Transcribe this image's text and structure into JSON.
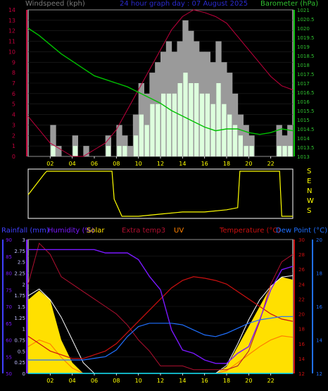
{
  "header": {
    "windspeed_title": "Windspeed (kph)",
    "graph_title": "24 hour graph day : 07 August 2025",
    "barometer_title": "Barometer (hPa)"
  },
  "colors": {
    "wind_gust": "#9a9a9a",
    "wind_avg": "#ddffdd",
    "barometer": "#00c000",
    "temp_top": "#c0003c",
    "wind_dir": "#ffff00",
    "rainfall_axis": "#4040ff",
    "humidity": "#7a18ff",
    "solar": "#ffe000",
    "solar_max": "#ffffff",
    "extra_temp": "#b01030",
    "uv": "#ff8000",
    "temperature": "#cc1010",
    "dew_point": "#2070ff",
    "rain": "#00e0ff"
  },
  "x_ticks": [
    "02",
    "04",
    "06",
    "08",
    "10",
    "12",
    "14",
    "16",
    "18",
    "20",
    "22"
  ],
  "direction_labels": [
    "S",
    "E",
    "N",
    "W",
    "S"
  ],
  "bottom_legend": {
    "rainfall": "Rainfall (mm)",
    "humidity": "Humidity (%)",
    "solar": "Solar",
    "extra_temp": "Extra temp3",
    "uv": "UV",
    "temperature": "Temperature (°C)",
    "dew_point": "Dew Point (°C)"
  },
  "chart_data": [
    {
      "type": "bar",
      "name": "windspeed",
      "xlim": [
        0,
        24
      ],
      "ylim": [
        0,
        14
      ],
      "y_ticks": [
        "0",
        "1",
        "2",
        "3",
        "4",
        "5",
        "6",
        "7",
        "8",
        "9",
        "10",
        "11",
        "12",
        "13",
        "14"
      ],
      "series": [
        {
          "name": "gust",
          "x": [
            0,
            2,
            2.5,
            3,
            3.5,
            4,
            5,
            6,
            7,
            8,
            8.5,
            9,
            9.5,
            10,
            10.5,
            11,
            11.5,
            12,
            12.5,
            13,
            13.5,
            14,
            14.5,
            15,
            15.5,
            16,
            16.5,
            17,
            17.5,
            18,
            18.5,
            19,
            19.5,
            20,
            21,
            22,
            22.5,
            23,
            23.5
          ],
          "values": [
            0,
            3,
            1,
            0,
            0,
            2,
            1,
            0,
            2,
            3,
            2,
            1,
            4,
            7,
            6,
            8,
            9,
            10,
            11,
            10,
            11,
            13,
            12,
            11,
            10,
            10,
            9,
            11,
            9,
            8,
            6,
            4,
            3,
            2,
            0,
            0,
            3,
            2,
            3
          ]
        },
        {
          "name": "average",
          "x": [
            0,
            2,
            2.5,
            3,
            3.5,
            4,
            5,
            6,
            7,
            8,
            8.5,
            9,
            9.5,
            10,
            10.5,
            11,
            11.5,
            12,
            12.5,
            13,
            13.5,
            14,
            14.5,
            15,
            15.5,
            16,
            16.5,
            17,
            17.5,
            18,
            18.5,
            19,
            19.5,
            20,
            21,
            22,
            22.5,
            23,
            23.5
          ],
          "values": [
            0,
            1,
            0,
            0,
            0,
            1,
            0,
            0,
            1,
            1,
            1,
            0,
            2,
            4,
            3,
            5,
            5,
            6,
            6,
            6,
            7,
            8,
            7,
            7,
            6,
            6,
            5,
            7,
            5,
            4,
            3,
            2,
            1,
            1,
            0,
            0,
            1,
            1,
            1
          ]
        }
      ]
    },
    {
      "type": "line",
      "name": "barometer",
      "y_ticks": [
        "1013",
        "1013.5",
        "1014",
        "1014.5",
        "1015",
        "1015.5",
        "1016",
        "1016.5",
        "1017",
        "1017.5",
        "1018",
        "1018.5",
        "1019",
        "1019.5",
        "1020",
        "1020.5",
        "1021"
      ],
      "ylim": [
        1013,
        1021
      ],
      "x": [
        0,
        1,
        2,
        3,
        4,
        5,
        6,
        7,
        8,
        9,
        10,
        11,
        12,
        13,
        14,
        15,
        16,
        17,
        18,
        19,
        20,
        21,
        22,
        23,
        24
      ],
      "values": [
        1020,
        1019.6,
        1019.1,
        1018.6,
        1018.2,
        1017.8,
        1017.4,
        1017.2,
        1017.0,
        1016.8,
        1016.5,
        1016.2,
        1015.9,
        1015.5,
        1015.2,
        1014.9,
        1014.6,
        1014.4,
        1014.5,
        1014.5,
        1014.3,
        1014.2,
        1014.3,
        1014.5,
        1014.4
      ]
    },
    {
      "type": "line",
      "name": "wind_direction",
      "y_labels": [
        "S",
        "E",
        "N",
        "W",
        "S"
      ],
      "x": [
        0,
        1.5,
        1.7,
        7.6,
        7.8,
        8.5,
        10,
        12,
        14,
        16,
        18,
        19,
        19.2,
        22.8,
        23,
        24
      ],
      "values": [
        0.45,
        0.95,
        1.0,
        1.0,
        0.35,
        -0.05,
        -0.05,
        0.0,
        0.05,
        0.05,
        0.1,
        0.15,
        1.0,
        1.0,
        -0.05,
        -0.05
      ],
      "ylim": [
        -0.1,
        1.05
      ]
    },
    {
      "type": "line",
      "name": "climate",
      "humidity_ticks": [
        "50",
        "55",
        "60",
        "65",
        "70",
        "75",
        "80",
        "85",
        "90"
      ],
      "rain_ticks": [
        "0",
        "0.25",
        "0.5",
        "0.75",
        "1",
        "1.25",
        "1.5",
        "1.75",
        "2",
        "2.25",
        "2.5",
        "2.75",
        "3"
      ],
      "temperature_ticks": [
        "12",
        "14",
        "16",
        "18",
        "20",
        "22",
        "24",
        "26",
        "28",
        "30"
      ],
      "dewpoint_ticks": [
        "12",
        "14",
        "16",
        "18",
        "20"
      ],
      "x": [
        0,
        1,
        2,
        3,
        4,
        5,
        6,
        7,
        8,
        9,
        10,
        11,
        12,
        13,
        14,
        15,
        16,
        17,
        18,
        19,
        20,
        21,
        22,
        23,
        24
      ],
      "series": [
        {
          "name": "humidity",
          "ylim": [
            50,
            90
          ],
          "values": [
            87,
            87,
            87,
            87,
            87,
            87,
            87,
            86,
            86,
            86,
            84,
            79,
            75,
            63,
            57,
            56,
            54,
            53,
            53,
            56,
            58,
            66,
            75,
            81,
            82
          ]
        },
        {
          "name": "temperature",
          "ylim": [
            12,
            30
          ],
          "values": [
            17.0,
            16.0,
            15.0,
            14.5,
            14.0,
            14.0,
            14.5,
            15.0,
            16.0,
            17.5,
            19.0,
            20.5,
            22.0,
            23.5,
            24.5,
            25.0,
            24.8,
            24.5,
            24.0,
            23.0,
            22.0,
            21.0,
            20.0,
            19.3,
            19.0
          ]
        },
        {
          "name": "extra_temp3",
          "ylim": [
            12,
            30
          ],
          "values": [
            24,
            29.5,
            28,
            25,
            24,
            23,
            22,
            21,
            20,
            18.5,
            16.5,
            15,
            13,
            13,
            13,
            12.5,
            12.5,
            12.5,
            12.5,
            13,
            15,
            19,
            24,
            27,
            28
          ]
        },
        {
          "name": "dew_point",
          "ylim": [
            12,
            20
          ],
          "values": [
            12.8,
            12.8,
            12.8,
            12.8,
            12.8,
            12.8,
            12.9,
            13.0,
            13.4,
            14.2,
            14.8,
            15.0,
            15.0,
            15.0,
            14.9,
            14.6,
            14.3,
            14.2,
            14.4,
            14.7,
            15.0,
            15.2,
            15.3,
            15.4,
            15.4
          ]
        },
        {
          "name": "solar",
          "ylim": [
            0,
            1
          ],
          "values": [
            0.55,
            0.62,
            0.55,
            0.25,
            0.08,
            0,
            0,
            0,
            0,
            0,
            0,
            0,
            0,
            0,
            0,
            0,
            0,
            0,
            0.05,
            0.2,
            0.35,
            0.5,
            0.65,
            0.72,
            0.7
          ]
        },
        {
          "name": "solar_max",
          "ylim": [
            0,
            1
          ],
          "values": [
            0.58,
            0.63,
            0.55,
            0.42,
            0.25,
            0.08,
            0,
            0,
            0,
            0,
            0,
            0,
            0,
            0,
            0,
            0,
            0,
            0,
            0.06,
            0.22,
            0.4,
            0.55,
            0.65,
            0.72,
            0.73
          ]
        },
        {
          "name": "uv",
          "ylim": [
            0,
            1
          ],
          "values": [
            0.2,
            0.25,
            0.22,
            0.12,
            0.04,
            0,
            0,
            0,
            0,
            0,
            0,
            0,
            0,
            0,
            0,
            0,
            0,
            0,
            0.02,
            0.08,
            0.14,
            0.2,
            0.25,
            0.28,
            0.27
          ]
        },
        {
          "name": "rainfall",
          "ylim": [
            0,
            3
          ],
          "values": [
            0,
            0,
            0,
            0,
            0,
            0,
            0,
            0,
            0,
            0,
            0,
            0,
            0,
            0,
            0,
            0,
            0,
            0,
            0,
            0,
            0,
            0,
            0,
            0,
            0
          ]
        }
      ]
    }
  ]
}
